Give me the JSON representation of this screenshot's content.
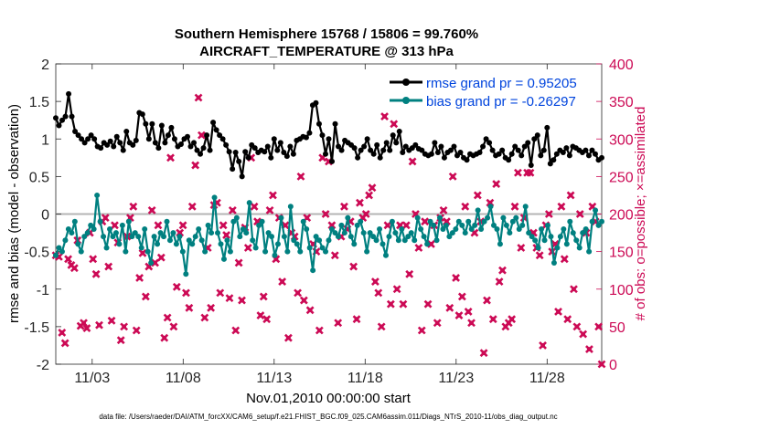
{
  "chart_data": {
    "type": "line",
    "title": "Southern Hemisphere 15768 / 15806 = 99.760%",
    "subtitle": "AIRCRAFT_TEMPERATURE @ 313 hPa",
    "xlabel": "Nov.01,2010 00:00:00 start",
    "ylabel_left": "rmse and bias (model - observation)",
    "ylabel_right": "# of obs: o=possible; ×=assimilated",
    "footnote": "data file: /Users/raeder/DAI/ATM_forcXX/CAM6_setup/f.e21.FHIST_BGC.f09_025.CAM6assim.011/Diags_NTrS_2010-11/obs_diag_output.nc",
    "x_range": [
      1,
      31
    ],
    "ylim_left": [
      -2,
      2
    ],
    "ylim_right": [
      0,
      400
    ],
    "x_ticks": [
      3,
      8,
      13,
      18,
      23,
      28
    ],
    "x_tick_labels": [
      "11/03",
      "11/08",
      "11/13",
      "11/18",
      "11/23",
      "11/28"
    ],
    "y_ticks_left": [
      -2,
      -1.5,
      -1,
      -0.5,
      0,
      0.5,
      1,
      1.5,
      2
    ],
    "y_tick_labels_left": [
      "-2",
      "-1.5",
      "-1",
      "-0.5",
      "0",
      "0.5",
      "1",
      "1.5",
      "2"
    ],
    "y_ticks_right": [
      0,
      50,
      100,
      150,
      200,
      250,
      300,
      350,
      400
    ],
    "y_tick_labels_right": [
      "0",
      "50",
      "100",
      "150",
      "200",
      "250",
      "300",
      "350",
      "400"
    ],
    "legend": {
      "position": "top-right",
      "entries": [
        "rmse grand pr = 0.95205",
        "bias grand pr = -0.26297"
      ]
    },
    "colors": {
      "rmse": "#000000",
      "bias": "#008080",
      "obs": "#cc0a55",
      "zero_line": "#b4b4b4",
      "legend_text": "#0044dd"
    },
    "series": [
      {
        "name": "rmse",
        "values": [
          1.28,
          1.18,
          1.25,
          1.3,
          1.6,
          1.3,
          1.1,
          1.05,
          1.0,
          0.95,
          1.0,
          1.05,
          1.0,
          0.9,
          0.88,
          0.95,
          0.92,
          0.97,
          0.9,
          1.03,
          0.95,
          0.85,
          1.1,
          0.95,
          0.92,
          0.98,
          1.35,
          1.33,
          1.2,
          1.0,
          1.2,
          0.95,
          0.88,
          1.18,
          0.95,
          1.05,
          1.15,
          1.0,
          0.9,
          0.93,
          1.0,
          1.03,
          0.9,
          0.95,
          0.85,
          0.8,
          0.88,
          1.05,
          0.85,
          1.22,
          1.12,
          1.05,
          1.0,
          0.92,
          0.83,
          0.6,
          0.82,
          0.7,
          0.5,
          0.83,
          0.75,
          0.92,
          0.88,
          0.82,
          0.85,
          0.83,
          0.9,
          0.75,
          1.0,
          0.85,
          0.95,
          0.82,
          0.77,
          0.9,
          0.8,
          0.98,
          1.0,
          1.03,
          1.02,
          1.08,
          1.45,
          1.48,
          1.2,
          1.05,
          0.8,
          1.0,
          0.7,
          1.2,
          0.9,
          0.85,
          0.98,
          0.95,
          0.92,
          0.88,
          0.75,
          0.85,
          0.9,
          1.0,
          0.85,
          0.8,
          0.92,
          0.75,
          0.85,
          0.95,
          0.85,
          1.05,
          0.95,
          1.1,
          0.82,
          0.9,
          0.85,
          0.88,
          0.92,
          0.87,
          0.85,
          0.8,
          0.78,
          0.8,
          0.95,
          0.82,
          0.9,
          0.75,
          0.82,
          0.85,
          0.9,
          0.78,
          0.82,
          0.75,
          0.72,
          0.8,
          0.78,
          0.8,
          0.82,
          0.9,
          1.0,
          0.95,
          0.85,
          0.78,
          0.8,
          0.85,
          0.75,
          0.72,
          0.8,
          0.9,
          0.85,
          0.78,
          0.9,
          0.95,
          0.65,
          1.0,
          1.05,
          0.78,
          0.85,
          1.15,
          0.67,
          0.72,
          0.8,
          0.85,
          0.82,
          0.88,
          0.78,
          0.9,
          0.88,
          0.85,
          0.82,
          0.85,
          0.78,
          0.85,
          0.8,
          0.72,
          0.75
        ]
      },
      {
        "name": "bias",
        "values": [
          -0.55,
          -0.45,
          -0.5,
          -0.35,
          -0.2,
          -0.25,
          -0.1,
          -0.4,
          -0.5,
          -0.3,
          -0.25,
          -0.15,
          -0.2,
          0.25,
          -0.1,
          -0.3,
          -0.45,
          -0.2,
          -0.3,
          -0.25,
          -0.4,
          -0.15,
          -0.5,
          -0.1,
          -0.3,
          -0.25,
          -0.3,
          -0.45,
          -0.2,
          -0.5,
          -0.65,
          -0.3,
          -0.4,
          -0.25,
          -0.3,
          -0.1,
          -0.35,
          -0.25,
          -0.4,
          -0.3,
          -0.5,
          -0.8,
          -0.35,
          -0.4,
          -0.3,
          -0.2,
          -0.35,
          -0.5,
          -0.15,
          -0.25,
          0.22,
          -0.25,
          -0.4,
          -0.6,
          -0.35,
          -0.5,
          -0.1,
          -0.05,
          -0.3,
          -0.2,
          -0.25,
          0.15,
          -0.35,
          -0.45,
          -0.15,
          -0.1,
          -0.5,
          -0.25,
          -0.3,
          -0.55,
          -0.4,
          -0.05,
          -0.3,
          -0.5,
          0.1,
          -0.35,
          -0.4,
          -0.5,
          -0.1,
          -0.2,
          -0.45,
          -0.75,
          -0.3,
          -0.35,
          -0.45,
          -0.5,
          -0.35,
          -0.2,
          -0.25,
          -0.3,
          -0.15,
          -0.25,
          -0.05,
          -0.3,
          -0.4,
          -0.15,
          -0.1,
          -0.25,
          -0.5,
          -0.25,
          -0.3,
          -0.35,
          -0.2,
          -0.4,
          -0.55,
          -0.3,
          -0.1,
          -0.25,
          -0.35,
          -0.2,
          -0.35,
          -0.3,
          -0.25,
          -0.35,
          -0.05,
          -0.2,
          -0.3,
          -0.4,
          -0.1,
          -0.15,
          -0.35,
          -0.05,
          -0.2,
          -0.15,
          -0.3,
          -0.25,
          -0.2,
          -0.1,
          -0.15,
          -0.25,
          -0.1,
          -0.2,
          -0.15,
          0.05,
          -0.2,
          -0.1,
          -0.05,
          0.1,
          -0.15,
          -0.2,
          -0.4,
          -0.05,
          -0.15,
          -0.25,
          -0.1,
          -0.05,
          -0.2,
          -0.15,
          0.1,
          -0.25,
          -0.3,
          -0.35,
          -0.45,
          -0.2,
          -0.35,
          -0.15,
          -0.3,
          -0.65,
          -0.45,
          -0.3,
          -0.2,
          -0.4,
          -0.1,
          -0.25,
          -0.35,
          -0.45,
          -0.25,
          -0.2,
          -0.5,
          -0.1,
          0.05,
          -0.15,
          -0.1
        ]
      },
      {
        "name": "obs_count",
        "values": [
          145,
          143,
          42,
          28,
          140,
          132,
          128,
          165,
          51,
          55,
          48,
          175,
          140,
          120,
          52,
          190,
          195,
          130,
          58,
          185,
          162,
          32,
          50,
          170,
          195,
          210,
          45,
          115,
          148,
          90,
          130,
          205,
          135,
          185,
          142,
          35,
          62,
          275,
          50,
          103,
          175,
          185,
          95,
          75,
          210,
          265,
          355,
          305,
          62,
          155,
          75,
          212,
          215,
          95,
          185,
          172,
          88,
          205,
          45,
          135,
          85,
          182,
          155,
          275,
          210,
          190,
          65,
          90,
          60,
          205,
          225,
          140,
          195,
          110,
          185,
          35,
          175,
          170,
          95,
          250,
          85,
          195,
          72,
          160,
          150,
          45,
          275,
          200,
          270,
          185,
          145,
          55,
          170,
          210,
          180,
          190,
          130,
          60,
          215,
          195,
          200,
          225,
          235,
          110,
          95,
          50,
          330,
          185,
          80,
          320,
          100,
          185,
          80,
          185,
          120,
          270,
          200,
          155,
          45,
          190,
          80,
          160,
          185,
          55,
          195,
          205,
          190,
          75,
          250,
          115,
          65,
          90,
          210,
          70,
          55,
          175,
          225,
          190,
          15,
          85,
          215,
          60,
          240,
          110,
          125,
          50,
          55,
          60,
          210,
          255,
          155,
          195,
          255,
          255,
          175,
          155,
          145,
          25,
          185,
          200,
          150,
          160,
          70,
          210,
          140,
          60,
          225,
          100,
          50,
          200,
          40,
          175,
          20,
          210,
          190,
          50,
          0
        ]
      }
    ]
  }
}
